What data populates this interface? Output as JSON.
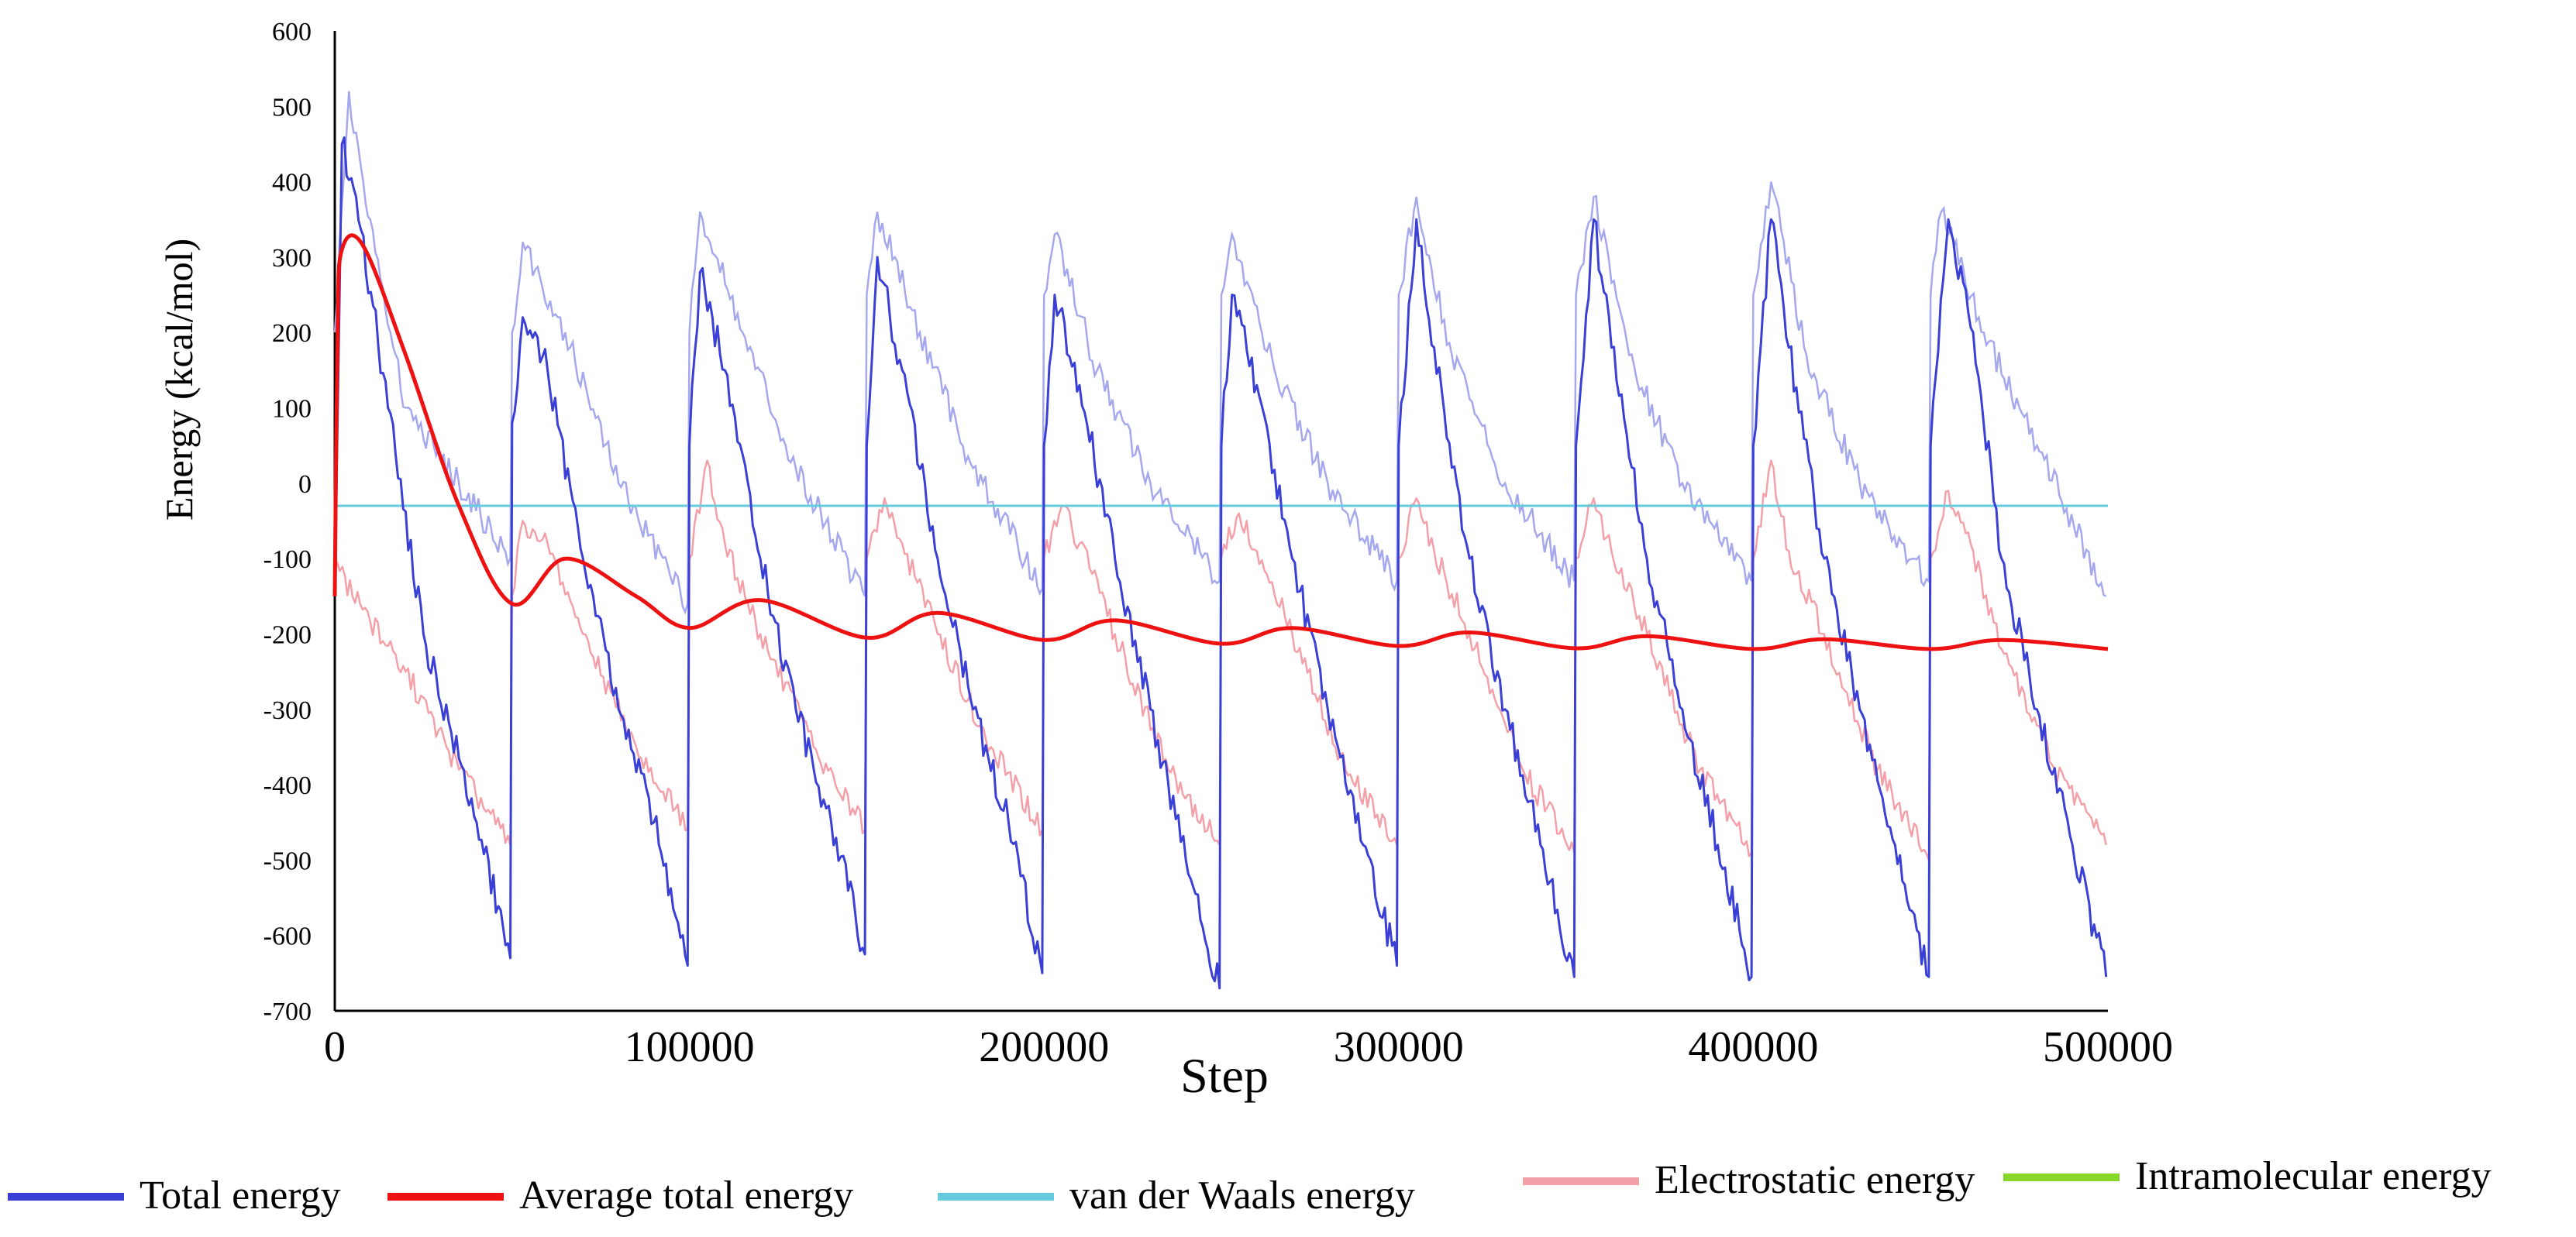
{
  "chart_data": {
    "type": "line",
    "title": "",
    "xlabel": "Step",
    "ylabel": "Energy (kcal/mol)",
    "xlim": [
      0,
      500000
    ],
    "ylim": [
      -700,
      600
    ],
    "x_ticks": [
      0,
      100000,
      200000,
      300000,
      400000,
      500000
    ],
    "y_ticks": [
      600,
      500,
      400,
      300,
      200,
      100,
      0,
      -100,
      -200,
      -300,
      -400,
      -500,
      -600,
      -700
    ],
    "x_tick_labels": [
      "0",
      "100000",
      "200000",
      "300000",
      "400000",
      "500000"
    ],
    "y_tick_labels": [
      "600",
      "500",
      "400",
      "300",
      "200",
      "100",
      "0",
      "-100",
      "-200",
      "-300",
      "-400",
      "-500",
      "-600",
      "-700"
    ],
    "grid": false,
    "legend_position": "bottom",
    "series": [
      {
        "name": "Total energy",
        "color": "#3a3fd6",
        "style": "sawtooth",
        "points": [
          [
            0,
            -150
          ],
          [
            2000,
            450
          ],
          [
            6000,
            380
          ],
          [
            15000,
            100
          ],
          [
            25000,
            -200
          ],
          [
            40000,
            -450
          ],
          [
            49500,
            -630
          ],
          [
            50000,
            80
          ],
          [
            53000,
            220
          ],
          [
            60000,
            150
          ],
          [
            70000,
            -100
          ],
          [
            80000,
            -300
          ],
          [
            90000,
            -450
          ],
          [
            99500,
            -640
          ],
          [
            100000,
            50
          ],
          [
            103000,
            280
          ],
          [
            110000,
            150
          ],
          [
            120000,
            -100
          ],
          [
            130000,
            -300
          ],
          [
            140000,
            -450
          ],
          [
            149500,
            -625
          ],
          [
            150000,
            50
          ],
          [
            153000,
            300
          ],
          [
            160000,
            150
          ],
          [
            170000,
            -100
          ],
          [
            180000,
            -300
          ],
          [
            190000,
            -450
          ],
          [
            199500,
            -650
          ],
          [
            200000,
            50
          ],
          [
            203000,
            250
          ],
          [
            210000,
            130
          ],
          [
            220000,
            -100
          ],
          [
            230000,
            -300
          ],
          [
            240000,
            -500
          ],
          [
            249500,
            -670
          ],
          [
            250000,
            50
          ],
          [
            253000,
            250
          ],
          [
            260000,
            130
          ],
          [
            270000,
            -100
          ],
          [
            280000,
            -300
          ],
          [
            290000,
            -480
          ],
          [
            299500,
            -640
          ],
          [
            300000,
            50
          ],
          [
            305000,
            350
          ],
          [
            310000,
            180
          ],
          [
            320000,
            -100
          ],
          [
            330000,
            -300
          ],
          [
            340000,
            -480
          ],
          [
            349500,
            -655
          ],
          [
            350000,
            50
          ],
          [
            355000,
            350
          ],
          [
            360000,
            180
          ],
          [
            370000,
            -100
          ],
          [
            380000,
            -300
          ],
          [
            390000,
            -480
          ],
          [
            399500,
            -655
          ],
          [
            400000,
            50
          ],
          [
            405000,
            350
          ],
          [
            410000,
            180
          ],
          [
            420000,
            -100
          ],
          [
            430000,
            -300
          ],
          [
            440000,
            -480
          ],
          [
            449500,
            -655
          ],
          [
            450000,
            50
          ],
          [
            455000,
            350
          ],
          [
            462000,
            200
          ],
          [
            470000,
            -100
          ],
          [
            480000,
            -300
          ],
          [
            490000,
            -480
          ],
          [
            499500,
            -655
          ]
        ]
      },
      {
        "name": "Average total energy",
        "color": "#ee1111",
        "style": "smooth",
        "points": [
          [
            0,
            -150
          ],
          [
            800,
            200
          ],
          [
            2000,
            310
          ],
          [
            8000,
            315
          ],
          [
            20000,
            170
          ],
          [
            35000,
            -30
          ],
          [
            50000,
            -160
          ],
          [
            65000,
            -100
          ],
          [
            85000,
            -150
          ],
          [
            100000,
            -192
          ],
          [
            120000,
            -155
          ],
          [
            150000,
            -205
          ],
          [
            170000,
            -172
          ],
          [
            200000,
            -208
          ],
          [
            220000,
            -182
          ],
          [
            250000,
            -213
          ],
          [
            270000,
            -192
          ],
          [
            300000,
            -216
          ],
          [
            320000,
            -198
          ],
          [
            350000,
            -219
          ],
          [
            370000,
            -203
          ],
          [
            400000,
            -220
          ],
          [
            420000,
            -207
          ],
          [
            450000,
            -220
          ],
          [
            470000,
            -208
          ],
          [
            500000,
            -220
          ]
        ]
      },
      {
        "name": "van der Waals energy",
        "color": "#66ccdd",
        "style": "flat",
        "points": [
          [
            0,
            -30
          ],
          [
            500000,
            -30
          ]
        ]
      },
      {
        "name": "Electrostatic energy",
        "color": "#f4a0a8",
        "style": "sawtooth",
        "points": [
          [
            0,
            -100
          ],
          [
            5000,
            -150
          ],
          [
            20000,
            -250
          ],
          [
            35000,
            -380
          ],
          [
            49500,
            -480
          ],
          [
            50000,
            -150
          ],
          [
            53000,
            -50
          ],
          [
            60000,
            -80
          ],
          [
            70000,
            -200
          ],
          [
            85000,
            -350
          ],
          [
            99500,
            -460
          ],
          [
            100000,
            -100
          ],
          [
            105000,
            30
          ],
          [
            110000,
            -80
          ],
          [
            120000,
            -200
          ],
          [
            135000,
            -350
          ],
          [
            149500,
            -460
          ],
          [
            150000,
            -100
          ],
          [
            155000,
            -20
          ],
          [
            160000,
            -80
          ],
          [
            170000,
            -200
          ],
          [
            185000,
            -350
          ],
          [
            199500,
            -460
          ],
          [
            200000,
            -100
          ],
          [
            205000,
            -30
          ],
          [
            210000,
            -80
          ],
          [
            220000,
            -200
          ],
          [
            235000,
            -380
          ],
          [
            249500,
            -480
          ],
          [
            250000,
            -100
          ],
          [
            255000,
            -40
          ],
          [
            260000,
            -90
          ],
          [
            270000,
            -200
          ],
          [
            285000,
            -380
          ],
          [
            299500,
            -480
          ],
          [
            300000,
            -100
          ],
          [
            305000,
            -20
          ],
          [
            310000,
            -90
          ],
          [
            320000,
            -200
          ],
          [
            335000,
            -380
          ],
          [
            349500,
            -490
          ],
          [
            350000,
            -100
          ],
          [
            355000,
            -20
          ],
          [
            360000,
            -90
          ],
          [
            370000,
            -200
          ],
          [
            385000,
            -380
          ],
          [
            399500,
            -490
          ],
          [
            400000,
            -100
          ],
          [
            405000,
            30
          ],
          [
            410000,
            -90
          ],
          [
            420000,
            -200
          ],
          [
            435000,
            -380
          ],
          [
            449500,
            -500
          ],
          [
            450000,
            -100
          ],
          [
            455000,
            -10
          ],
          [
            462000,
            -90
          ],
          [
            470000,
            -220
          ],
          [
            485000,
            -380
          ],
          [
            499500,
            -480
          ]
        ]
      },
      {
        "name": "Intramolecular energy",
        "color": "#88d82a",
        "style": "legend-only",
        "points": []
      }
    ],
    "overlay_series": {
      "color": "#a6a8ee",
      "style": "sawtooth",
      "points": [
        [
          0,
          200
        ],
        [
          4000,
          520
        ],
        [
          10000,
          350
        ],
        [
          20000,
          100
        ],
        [
          35000,
          0
        ],
        [
          49500,
          -100
        ],
        [
          50000,
          200
        ],
        [
          53000,
          320
        ],
        [
          65000,
          200
        ],
        [
          80000,
          0
        ],
        [
          99500,
          -160
        ],
        [
          100000,
          200
        ],
        [
          103000,
          360
        ],
        [
          115000,
          200
        ],
        [
          130000,
          20
        ],
        [
          149500,
          -150
        ],
        [
          150000,
          250
        ],
        [
          153000,
          360
        ],
        [
          165000,
          200
        ],
        [
          180000,
          20
        ],
        [
          199500,
          -140
        ],
        [
          200000,
          250
        ],
        [
          203000,
          330
        ],
        [
          215000,
          150
        ],
        [
          230000,
          0
        ],
        [
          249500,
          -130
        ],
        [
          250000,
          250
        ],
        [
          253000,
          330
        ],
        [
          265000,
          150
        ],
        [
          280000,
          0
        ],
        [
          299500,
          -130
        ],
        [
          300000,
          250
        ],
        [
          305000,
          380
        ],
        [
          315000,
          170
        ],
        [
          330000,
          0
        ],
        [
          349500,
          -130
        ],
        [
          350000,
          250
        ],
        [
          355000,
          380
        ],
        [
          365000,
          170
        ],
        [
          380000,
          0
        ],
        [
          399500,
          -130
        ],
        [
          400000,
          250
        ],
        [
          405000,
          400
        ],
        [
          415000,
          170
        ],
        [
          430000,
          0
        ],
        [
          449500,
          -130
        ],
        [
          450000,
          250
        ],
        [
          453000,
          360
        ],
        [
          465000,
          200
        ],
        [
          480000,
          50
        ],
        [
          499500,
          -150
        ]
      ]
    }
  }
}
